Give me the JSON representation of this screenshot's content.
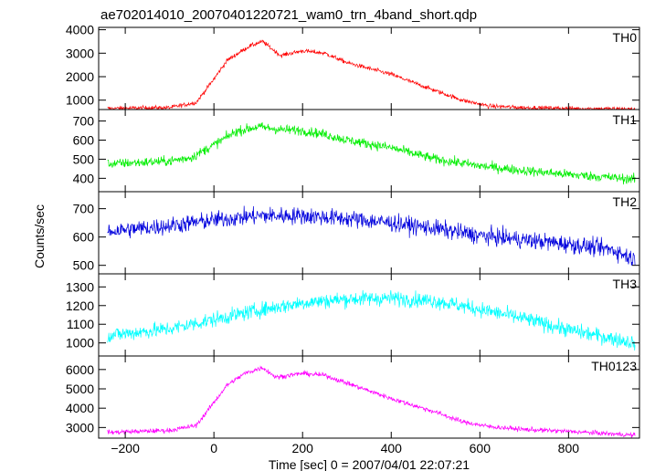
{
  "chart_data": {
    "type": "line",
    "title": "ae702014010_20070401220721_wam0_trn_4band_short.qdp",
    "xlabel": "Time [sec] 0 = 2007/04/01 22:07:21",
    "ylabel": "Counts/sec",
    "xlim": [
      -260,
      960
    ],
    "xticks": [
      -200,
      0,
      200,
      400,
      600,
      800
    ],
    "xtick_labels": [
      "−200",
      "0",
      "200",
      "400",
      "600",
      "800"
    ],
    "grid": false,
    "legend": "none",
    "panels": [
      {
        "label": "TH0",
        "color": "#ff0000",
        "ylim": [
          600,
          4100
        ],
        "yticks": [
          1000,
          2000,
          3000,
          4000
        ],
        "noise": 90,
        "profile": [
          [
            -240,
            650
          ],
          [
            -100,
            680
          ],
          [
            -40,
            900
          ],
          [
            0,
            1900
          ],
          [
            30,
            2700
          ],
          [
            80,
            3300
          ],
          [
            110,
            3500
          ],
          [
            150,
            2900
          ],
          [
            200,
            3100
          ],
          [
            250,
            3000
          ],
          [
            300,
            2600
          ],
          [
            400,
            2100
          ],
          [
            500,
            1400
          ],
          [
            560,
            1000
          ],
          [
            620,
            750
          ],
          [
            700,
            680
          ],
          [
            800,
            650
          ],
          [
            950,
            620
          ]
        ]
      },
      {
        "label": "TH1",
        "color": "#00ee00",
        "ylim": [
          330,
          760
        ],
        "yticks": [
          400,
          500,
          600,
          700
        ],
        "noise": 25,
        "profile": [
          [
            -240,
            475
          ],
          [
            -100,
            490
          ],
          [
            -50,
            510
          ],
          [
            0,
            575
          ],
          [
            50,
            645
          ],
          [
            100,
            670
          ],
          [
            150,
            655
          ],
          [
            200,
            650
          ],
          [
            250,
            630
          ],
          [
            300,
            600
          ],
          [
            400,
            560
          ],
          [
            500,
            500
          ],
          [
            600,
            465
          ],
          [
            700,
            440
          ],
          [
            800,
            420
          ],
          [
            950,
            395
          ]
        ]
      },
      {
        "label": "TH2",
        "color": "#0000dd",
        "ylim": [
          470,
          760
        ],
        "yticks": [
          500,
          600,
          700
        ],
        "noise": 30,
        "profile": [
          [
            -240,
            620
          ],
          [
            -100,
            640
          ],
          [
            0,
            660
          ],
          [
            100,
            675
          ],
          [
            200,
            675
          ],
          [
            300,
            665
          ],
          [
            400,
            650
          ],
          [
            500,
            630
          ],
          [
            600,
            605
          ],
          [
            700,
            590
          ],
          [
            800,
            575
          ],
          [
            900,
            555
          ],
          [
            950,
            520
          ]
        ]
      },
      {
        "label": "TH3",
        "color": "#00ffff",
        "ylim": [
          930,
          1370
        ],
        "yticks": [
          1000,
          1100,
          1200,
          1300
        ],
        "noise": 40,
        "profile": [
          [
            -240,
            1040
          ],
          [
            -100,
            1075
          ],
          [
            0,
            1125
          ],
          [
            100,
            1175
          ],
          [
            200,
            1215
          ],
          [
            300,
            1235
          ],
          [
            400,
            1240
          ],
          [
            500,
            1225
          ],
          [
            600,
            1180
          ],
          [
            700,
            1130
          ],
          [
            800,
            1070
          ],
          [
            950,
            1000
          ]
        ]
      },
      {
        "label": "TH0123",
        "color": "#ff00ff",
        "ylim": [
          2450,
          6700
        ],
        "yticks": [
          3000,
          4000,
          5000,
          6000
        ],
        "noise": 120,
        "profile": [
          [
            -240,
            2750
          ],
          [
            -100,
            2850
          ],
          [
            -40,
            3100
          ],
          [
            0,
            4300
          ],
          [
            30,
            5200
          ],
          [
            70,
            5800
          ],
          [
            110,
            6100
          ],
          [
            140,
            5600
          ],
          [
            200,
            5800
          ],
          [
            250,
            5700
          ],
          [
            300,
            5300
          ],
          [
            400,
            4500
          ],
          [
            500,
            3800
          ],
          [
            560,
            3300
          ],
          [
            620,
            3050
          ],
          [
            700,
            2900
          ],
          [
            800,
            2800
          ],
          [
            950,
            2600
          ]
        ]
      }
    ]
  }
}
